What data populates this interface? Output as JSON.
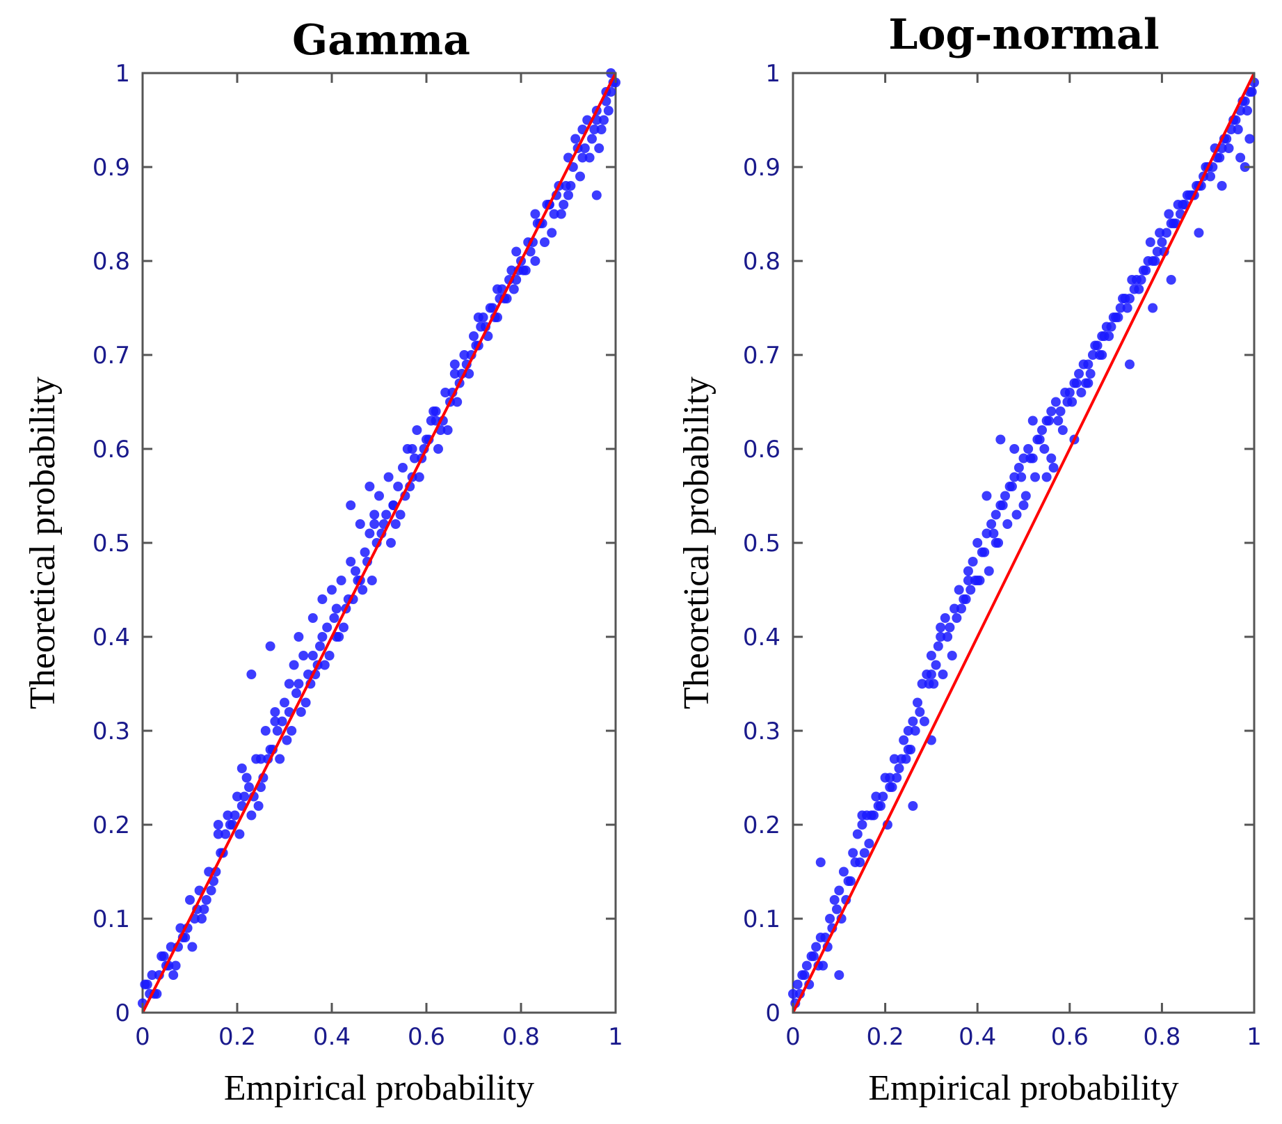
{
  "chart_data": [
    {
      "type": "scatter",
      "title": "Gamma",
      "xlabel": "Empirical probability",
      "ylabel": "Theoretical probability",
      "xlim": [
        0,
        1
      ],
      "ylim": [
        0,
        1
      ],
      "xticks": [
        "0",
        "0.2",
        "0.4",
        "0.6",
        "0.8",
        "1"
      ],
      "yticks": [
        "0",
        "0.1",
        "0.2",
        "0.3",
        "0.4",
        "0.5",
        "0.6",
        "0.7",
        "0.8",
        "0.9",
        "1"
      ],
      "reference_line": {
        "x": [
          0,
          1
        ],
        "y": [
          0,
          1
        ],
        "color": "#ff0000"
      },
      "marker_color": "#1a1aff",
      "x": [
        0.0,
        0.01,
        0.02,
        0.03,
        0.04,
        0.05,
        0.06,
        0.07,
        0.08,
        0.09,
        0.1,
        0.11,
        0.12,
        0.13,
        0.14,
        0.15,
        0.16,
        0.17,
        0.18,
        0.19,
        0.2,
        0.21,
        0.22,
        0.23,
        0.24,
        0.25,
        0.26,
        0.27,
        0.28,
        0.29,
        0.3,
        0.31,
        0.32,
        0.33,
        0.34,
        0.35,
        0.36,
        0.37,
        0.38,
        0.39,
        0.4,
        0.41,
        0.42,
        0.43,
        0.44,
        0.45,
        0.46,
        0.47,
        0.48,
        0.49,
        0.5,
        0.51,
        0.52,
        0.53,
        0.54,
        0.55,
        0.56,
        0.57,
        0.58,
        0.59,
        0.6,
        0.61,
        0.62,
        0.63,
        0.64,
        0.65,
        0.66,
        0.67,
        0.68,
        0.69,
        0.7,
        0.71,
        0.72,
        0.73,
        0.74,
        0.75,
        0.76,
        0.77,
        0.78,
        0.79,
        0.8,
        0.81,
        0.82,
        0.83,
        0.84,
        0.85,
        0.86,
        0.87,
        0.88,
        0.89,
        0.9,
        0.91,
        0.92,
        0.93,
        0.94,
        0.95,
        0.96,
        0.97,
        0.98,
        0.99,
        1.0,
        0.005,
        0.025,
        0.045,
        0.065,
        0.085,
        0.105,
        0.125,
        0.145,
        0.165,
        0.185,
        0.205,
        0.225,
        0.245,
        0.265,
        0.285,
        0.305,
        0.325,
        0.345,
        0.365,
        0.385,
        0.405,
        0.425,
        0.445,
        0.465,
        0.485,
        0.505,
        0.525,
        0.545,
        0.565,
        0.585,
        0.605,
        0.625,
        0.645,
        0.665,
        0.685,
        0.705,
        0.725,
        0.745,
        0.765,
        0.785,
        0.805,
        0.825,
        0.845,
        0.865,
        0.885,
        0.905,
        0.925,
        0.945,
        0.965,
        0.985,
        0.015,
        0.035,
        0.055,
        0.075,
        0.095,
        0.115,
        0.135,
        0.155,
        0.175,
        0.195,
        0.215,
        0.235,
        0.255,
        0.275,
        0.295,
        0.315,
        0.335,
        0.355,
        0.375,
        0.395,
        0.415,
        0.435,
        0.455,
        0.475,
        0.495,
        0.515,
        0.535,
        0.555,
        0.575,
        0.595,
        0.615,
        0.635,
        0.655,
        0.675,
        0.695,
        0.715,
        0.735,
        0.755,
        0.775,
        0.795,
        0.815,
        0.835,
        0.855,
        0.875,
        0.895,
        0.915,
        0.935,
        0.955,
        0.975,
        0.995,
        0.16,
        0.21,
        0.25,
        0.28,
        0.31,
        0.36,
        0.41,
        0.46,
        0.49,
        0.53,
        0.57,
        0.62,
        0.66,
        0.71,
        0.75,
        0.79,
        0.83,
        0.86,
        0.9,
        0.93,
        0.96,
        0.98,
        0.99,
        0.96,
        0.23,
        0.27,
        0.33,
        0.38,
        0.44,
        0.48
      ],
      "y": [
        0.01,
        0.03,
        0.04,
        0.02,
        0.06,
        0.05,
        0.07,
        0.05,
        0.09,
        0.08,
        0.12,
        0.1,
        0.13,
        0.11,
        0.15,
        0.14,
        0.19,
        0.17,
        0.21,
        0.2,
        0.23,
        0.22,
        0.25,
        0.21,
        0.27,
        0.24,
        0.3,
        0.28,
        0.32,
        0.27,
        0.33,
        0.32,
        0.37,
        0.35,
        0.38,
        0.36,
        0.42,
        0.37,
        0.4,
        0.41,
        0.45,
        0.43,
        0.46,
        0.43,
        0.48,
        0.47,
        0.52,
        0.49,
        0.51,
        0.53,
        0.55,
        0.52,
        0.57,
        0.54,
        0.56,
        0.58,
        0.6,
        0.57,
        0.62,
        0.59,
        0.61,
        0.63,
        0.64,
        0.62,
        0.66,
        0.65,
        0.69,
        0.67,
        0.7,
        0.68,
        0.72,
        0.71,
        0.74,
        0.72,
        0.75,
        0.74,
        0.77,
        0.76,
        0.79,
        0.78,
        0.8,
        0.79,
        0.81,
        0.8,
        0.84,
        0.82,
        0.86,
        0.85,
        0.88,
        0.86,
        0.87,
        0.9,
        0.92,
        0.91,
        0.95,
        0.93,
        0.96,
        0.94,
        0.97,
        0.98,
        0.99,
        0.03,
        0.02,
        0.06,
        0.04,
        0.08,
        0.07,
        0.1,
        0.13,
        0.17,
        0.2,
        0.19,
        0.24,
        0.22,
        0.27,
        0.3,
        0.29,
        0.34,
        0.33,
        0.36,
        0.37,
        0.42,
        0.41,
        0.44,
        0.45,
        0.46,
        0.51,
        0.5,
        0.53,
        0.56,
        0.57,
        0.61,
        0.6,
        0.62,
        0.65,
        0.69,
        0.71,
        0.73,
        0.74,
        0.76,
        0.77,
        0.79,
        0.82,
        0.84,
        0.83,
        0.85,
        0.88,
        0.89,
        0.91,
        0.92,
        0.96,
        0.02,
        0.04,
        0.05,
        0.07,
        0.09,
        0.11,
        0.12,
        0.15,
        0.19,
        0.21,
        0.23,
        0.23,
        0.25,
        0.28,
        0.31,
        0.3,
        0.32,
        0.35,
        0.39,
        0.38,
        0.4,
        0.44,
        0.46,
        0.48,
        0.5,
        0.53,
        0.52,
        0.55,
        0.59,
        0.6,
        0.64,
        0.63,
        0.66,
        0.68,
        0.7,
        0.73,
        0.75,
        0.76,
        0.78,
        0.79,
        0.82,
        0.84,
        0.86,
        0.87,
        0.88,
        0.93,
        0.92,
        0.94,
        0.95,
        0.99,
        0.2,
        0.26,
        0.27,
        0.31,
        0.35,
        0.38,
        0.4,
        0.46,
        0.52,
        0.54,
        0.6,
        0.63,
        0.68,
        0.74,
        0.77,
        0.81,
        0.85,
        0.86,
        0.91,
        0.94,
        0.95,
        0.98,
        1.0,
        0.87,
        0.36,
        0.39,
        0.4,
        0.44,
        0.54,
        0.56
      ]
    },
    {
      "type": "scatter",
      "title": "Log-normal",
      "xlabel": "Empirical probability",
      "ylabel": "Theoretical probability",
      "xlim": [
        0,
        1
      ],
      "ylim": [
        0,
        1
      ],
      "xticks": [
        "0",
        "0.2",
        "0.4",
        "0.6",
        "0.8",
        "1"
      ],
      "yticks": [
        "0",
        "0.1",
        "0.2",
        "0.3",
        "0.4",
        "0.5",
        "0.6",
        "0.7",
        "0.8",
        "0.9",
        "1"
      ],
      "reference_line": {
        "x": [
          0,
          1
        ],
        "y": [
          0,
          1
        ],
        "color": "#ff0000"
      },
      "marker_color": "#1a1aff",
      "x": [
        0.0,
        0.01,
        0.02,
        0.03,
        0.04,
        0.05,
        0.06,
        0.07,
        0.08,
        0.09,
        0.1,
        0.11,
        0.12,
        0.13,
        0.14,
        0.15,
        0.16,
        0.17,
        0.18,
        0.19,
        0.2,
        0.21,
        0.22,
        0.23,
        0.24,
        0.25,
        0.26,
        0.27,
        0.28,
        0.29,
        0.3,
        0.31,
        0.32,
        0.33,
        0.34,
        0.35,
        0.36,
        0.37,
        0.38,
        0.39,
        0.4,
        0.41,
        0.42,
        0.43,
        0.44,
        0.45,
        0.46,
        0.47,
        0.48,
        0.49,
        0.5,
        0.51,
        0.52,
        0.53,
        0.54,
        0.55,
        0.56,
        0.57,
        0.58,
        0.59,
        0.6,
        0.61,
        0.62,
        0.63,
        0.64,
        0.65,
        0.66,
        0.67,
        0.68,
        0.69,
        0.7,
        0.71,
        0.72,
        0.73,
        0.74,
        0.75,
        0.76,
        0.77,
        0.78,
        0.79,
        0.8,
        0.81,
        0.82,
        0.83,
        0.84,
        0.85,
        0.86,
        0.87,
        0.88,
        0.89,
        0.9,
        0.91,
        0.92,
        0.93,
        0.94,
        0.95,
        0.96,
        0.97,
        0.98,
        0.99,
        1.0,
        0.005,
        0.025,
        0.045,
        0.065,
        0.085,
        0.105,
        0.125,
        0.145,
        0.165,
        0.185,
        0.205,
        0.225,
        0.245,
        0.265,
        0.285,
        0.305,
        0.325,
        0.345,
        0.365,
        0.385,
        0.405,
        0.425,
        0.445,
        0.465,
        0.485,
        0.505,
        0.525,
        0.545,
        0.565,
        0.585,
        0.605,
        0.625,
        0.645,
        0.665,
        0.685,
        0.705,
        0.725,
        0.745,
        0.765,
        0.785,
        0.805,
        0.825,
        0.845,
        0.865,
        0.885,
        0.905,
        0.925,
        0.945,
        0.965,
        0.985,
        0.015,
        0.035,
        0.055,
        0.075,
        0.095,
        0.115,
        0.135,
        0.155,
        0.175,
        0.195,
        0.215,
        0.235,
        0.255,
        0.275,
        0.295,
        0.315,
        0.335,
        0.355,
        0.375,
        0.395,
        0.415,
        0.435,
        0.455,
        0.475,
        0.495,
        0.515,
        0.535,
        0.555,
        0.575,
        0.595,
        0.615,
        0.635,
        0.655,
        0.675,
        0.695,
        0.715,
        0.735,
        0.755,
        0.775,
        0.795,
        0.815,
        0.835,
        0.855,
        0.875,
        0.895,
        0.915,
        0.935,
        0.955,
        0.975,
        0.995,
        0.06,
        0.1,
        0.15,
        0.21,
        0.25,
        0.3,
        0.32,
        0.38,
        0.42,
        0.45,
        0.48,
        0.52,
        0.55,
        0.61,
        0.64,
        0.67,
        0.73,
        0.78,
        0.82,
        0.88,
        0.93,
        0.98,
        0.99,
        0.97,
        0.4,
        0.44,
        0.5,
        0.56,
        0.3,
        0.26
      ],
      "y": [
        0.02,
        0.03,
        0.04,
        0.05,
        0.06,
        0.07,
        0.08,
        0.08,
        0.1,
        0.12,
        0.13,
        0.15,
        0.14,
        0.17,
        0.19,
        0.2,
        0.21,
        0.21,
        0.23,
        0.22,
        0.25,
        0.24,
        0.27,
        0.26,
        0.29,
        0.28,
        0.31,
        0.33,
        0.35,
        0.36,
        0.38,
        0.37,
        0.4,
        0.42,
        0.41,
        0.43,
        0.45,
        0.44,
        0.47,
        0.48,
        0.5,
        0.49,
        0.51,
        0.52,
        0.53,
        0.54,
        0.55,
        0.56,
        0.57,
        0.58,
        0.59,
        0.6,
        0.59,
        0.61,
        0.62,
        0.63,
        0.64,
        0.65,
        0.64,
        0.66,
        0.66,
        0.67,
        0.68,
        0.69,
        0.69,
        0.7,
        0.71,
        0.72,
        0.73,
        0.73,
        0.74,
        0.75,
        0.76,
        0.76,
        0.77,
        0.77,
        0.79,
        0.8,
        0.8,
        0.81,
        0.82,
        0.83,
        0.84,
        0.84,
        0.85,
        0.86,
        0.87,
        0.87,
        0.88,
        0.89,
        0.9,
        0.9,
        0.91,
        0.92,
        0.93,
        0.94,
        0.95,
        0.96,
        0.97,
        0.98,
        0.99,
        0.01,
        0.04,
        0.06,
        0.05,
        0.09,
        0.1,
        0.14,
        0.16,
        0.18,
        0.22,
        0.2,
        0.25,
        0.27,
        0.3,
        0.31,
        0.35,
        0.36,
        0.38,
        0.43,
        0.45,
        0.46,
        0.47,
        0.5,
        0.52,
        0.53,
        0.55,
        0.57,
        0.6,
        0.58,
        0.62,
        0.65,
        0.66,
        0.68,
        0.7,
        0.72,
        0.74,
        0.75,
        0.78,
        0.79,
        0.8,
        0.81,
        0.84,
        0.86,
        0.87,
        0.88,
        0.89,
        0.91,
        0.92,
        0.94,
        0.96,
        0.02,
        0.03,
        0.05,
        0.07,
        0.11,
        0.12,
        0.16,
        0.17,
        0.21,
        0.23,
        0.24,
        0.27,
        0.28,
        0.32,
        0.35,
        0.39,
        0.4,
        0.42,
        0.44,
        0.46,
        0.49,
        0.51,
        0.54,
        0.56,
        0.57,
        0.59,
        0.61,
        0.63,
        0.63,
        0.65,
        0.67,
        0.67,
        0.71,
        0.72,
        0.74,
        0.76,
        0.78,
        0.78,
        0.82,
        0.83,
        0.85,
        0.86,
        0.87,
        0.88,
        0.9,
        0.92,
        0.93,
        0.95,
        0.97,
        0.98,
        0.16,
        0.04,
        0.21,
        0.25,
        0.3,
        0.36,
        0.41,
        0.46,
        0.55,
        0.61,
        0.6,
        0.63,
        0.57,
        0.61,
        0.67,
        0.7,
        0.69,
        0.75,
        0.78,
        0.83,
        0.88,
        0.9,
        0.93,
        0.91,
        0.46,
        0.5,
        0.54,
        0.59,
        0.29,
        0.22
      ]
    }
  ]
}
